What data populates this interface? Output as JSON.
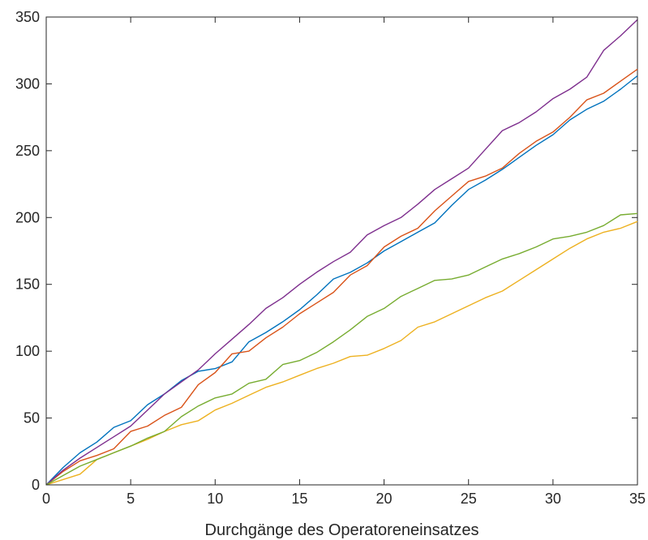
{
  "chart_data": {
    "type": "line",
    "title": "",
    "xlabel": "Durchgänge des Operatoreneinsatzes",
    "ylabel": "",
    "xlim": [
      0,
      35
    ],
    "ylim": [
      0,
      350
    ],
    "xticks": [
      0,
      5,
      10,
      15,
      20,
      25,
      30,
      35
    ],
    "yticks": [
      0,
      50,
      100,
      150,
      200,
      250,
      300,
      350
    ],
    "grid": false,
    "legend": "none",
    "x": [
      0,
      1,
      2,
      3,
      4,
      5,
      6,
      7,
      8,
      9,
      10,
      11,
      12,
      13,
      14,
      15,
      16,
      17,
      18,
      19,
      20,
      21,
      22,
      23,
      24,
      25,
      26,
      27,
      28,
      29,
      30,
      31,
      32,
      33,
      34,
      35
    ],
    "series": [
      {
        "color": "#0072BD",
        "values": [
          0,
          13,
          24,
          32,
          43,
          48,
          60,
          68,
          78,
          85,
          87,
          92,
          107,
          114,
          122,
          131,
          142,
          154,
          159,
          166,
          175,
          182,
          189,
          196,
          209,
          221,
          228,
          236,
          245,
          254,
          262,
          273,
          281,
          287,
          296,
          306
        ]
      },
      {
        "color": "#D95319",
        "values": [
          0,
          10,
          18,
          22,
          27,
          40,
          44,
          52,
          58,
          75,
          84,
          98,
          100,
          110,
          118,
          128,
          136,
          144,
          157,
          164,
          178,
          186,
          192,
          205,
          216,
          227,
          231,
          237,
          248,
          257,
          264,
          275,
          288,
          293,
          302,
          311
        ]
      },
      {
        "color": "#EDB120",
        "values": [
          0,
          4,
          8,
          19,
          24,
          29,
          34,
          40,
          45,
          48,
          56,
          61,
          67,
          73,
          77,
          82,
          87,
          91,
          96,
          97,
          102,
          108,
          118,
          122,
          128,
          134,
          140,
          145,
          153,
          161,
          169,
          177,
          184,
          189,
          192,
          197
        ]
      },
      {
        "color": "#7E2F8E",
        "values": [
          0,
          11,
          20,
          28,
          36,
          44,
          56,
          68,
          77,
          86,
          98,
          109,
          120,
          132,
          140,
          150,
          159,
          167,
          174,
          187,
          194,
          200,
          210,
          221,
          229,
          237,
          251,
          265,
          271,
          279,
          289,
          296,
          305,
          325,
          336,
          348
        ]
      },
      {
        "color": "#77AC30",
        "values": [
          0,
          7,
          14,
          19,
          24,
          29,
          35,
          40,
          51,
          59,
          65,
          68,
          76,
          79,
          90,
          93,
          99,
          107,
          116,
          126,
          132,
          141,
          147,
          153,
          154,
          157,
          163,
          169,
          173,
          178,
          184,
          186,
          189,
          194,
          202,
          203
        ]
      }
    ]
  }
}
